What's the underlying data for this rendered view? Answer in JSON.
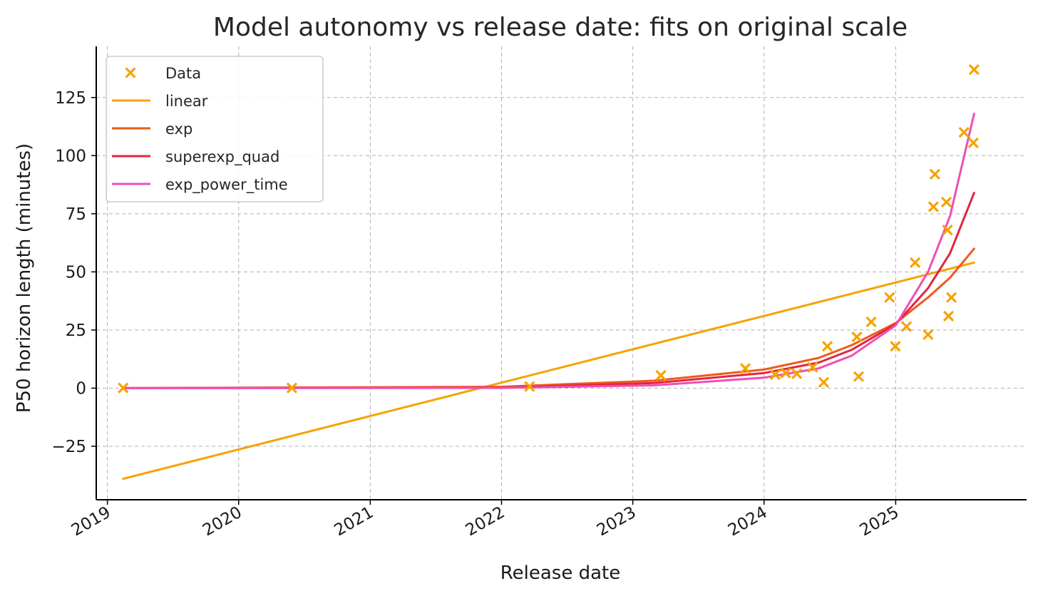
{
  "chart_data": {
    "type": "scatter",
    "title": "Model autonomy vs release date: fits on original scale",
    "xlabel": "Release date",
    "ylabel": "P50 horizon length (minutes)",
    "xlim": [
      "2018-12-01",
      "2025-12-31"
    ],
    "ylim": [
      -48,
      147
    ],
    "x_ticks": [
      {
        "date": "2019-01-01",
        "label": "2019"
      },
      {
        "date": "2020-01-01",
        "label": "2020"
      },
      {
        "date": "2021-01-01",
        "label": "2021"
      },
      {
        "date": "2022-01-01",
        "label": "2022"
      },
      {
        "date": "2023-01-01",
        "label": "2023"
      },
      {
        "date": "2024-01-01",
        "label": "2024"
      },
      {
        "date": "2025-01-01",
        "label": "2025"
      }
    ],
    "y_ticks": [
      {
        "value": -25,
        "label": "−25"
      },
      {
        "value": 0,
        "label": "0"
      },
      {
        "value": 25,
        "label": "25"
      },
      {
        "value": 50,
        "label": "50"
      },
      {
        "value": 75,
        "label": "75"
      },
      {
        "value": 100,
        "label": "100"
      },
      {
        "value": 125,
        "label": "125"
      }
    ],
    "grid": true,
    "legend_position": "top-left",
    "points": {
      "name": "Data",
      "color": "#f5a300",
      "marker": "x",
      "data": [
        {
          "x": "2019-02-14",
          "y": 0.1
        },
        {
          "x": "2020-05-28",
          "y": 0.1
        },
        {
          "x": "2022-03-20",
          "y": 0.7
        },
        {
          "x": "2023-03-20",
          "y": 5.5
        },
        {
          "x": "2023-11-10",
          "y": 8.5
        },
        {
          "x": "2024-02-01",
          "y": 5.8
        },
        {
          "x": "2024-03-01",
          "y": 6.5
        },
        {
          "x": "2024-04-01",
          "y": 6.2
        },
        {
          "x": "2024-05-15",
          "y": 9.0
        },
        {
          "x": "2024-06-15",
          "y": 2.5
        },
        {
          "x": "2024-06-25",
          "y": 18.0
        },
        {
          "x": "2024-09-15",
          "y": 22.0
        },
        {
          "x": "2024-09-20",
          "y": 5.0
        },
        {
          "x": "2024-10-25",
          "y": 28.5
        },
        {
          "x": "2024-12-15",
          "y": 39.0
        },
        {
          "x": "2024-12-31",
          "y": 18.0
        },
        {
          "x": "2025-01-31",
          "y": 26.5
        },
        {
          "x": "2025-02-24",
          "y": 54.0
        },
        {
          "x": "2025-04-01",
          "y": 23.0
        },
        {
          "x": "2025-04-16",
          "y": 78.0
        },
        {
          "x": "2025-04-20",
          "y": 92.0
        },
        {
          "x": "2025-05-22",
          "y": 80.0
        },
        {
          "x": "2025-05-25",
          "y": 68.0
        },
        {
          "x": "2025-05-28",
          "y": 31.0
        },
        {
          "x": "2025-06-05",
          "y": 39.0
        },
        {
          "x": "2025-07-10",
          "y": 110.0
        },
        {
          "x": "2025-08-05",
          "y": 105.5
        },
        {
          "x": "2025-08-07",
          "y": 137.0
        }
      ]
    },
    "series": [
      {
        "name": "linear",
        "color": "#f5a300",
        "x": [
          "2019-02-14",
          "2025-08-07"
        ],
        "y": [
          -39,
          54
        ]
      },
      {
        "name": "exp",
        "color": "#ee5a1e",
        "x": [
          "2019-02-14",
          "2022-01-01",
          "2023-03-01",
          "2024-01-01",
          "2024-06-01",
          "2024-09-01",
          "2025-01-01",
          "2025-04-01",
          "2025-06-01",
          "2025-08-07"
        ],
        "y": [
          0,
          0.6,
          3.2,
          8.0,
          13.0,
          18.5,
          28.0,
          39.0,
          47.5,
          60.0
        ]
      },
      {
        "name": "superexp_quad",
        "color": "#e0263f",
        "x": [
          "2019-02-14",
          "2022-01-01",
          "2023-03-01",
          "2024-01-01",
          "2024-06-01",
          "2024-09-01",
          "2025-01-01",
          "2025-04-01",
          "2025-06-01",
          "2025-08-07"
        ],
        "y": [
          0,
          0.2,
          2.2,
          6.5,
          11.0,
          16.5,
          27.5,
          43.0,
          58.0,
          84.0
        ]
      },
      {
        "name": "exp_power_time",
        "color": "#ee4fb4",
        "x": [
          "2019-02-14",
          "2022-01-01",
          "2023-03-01",
          "2024-01-01",
          "2024-06-01",
          "2024-09-01",
          "2025-01-01",
          "2025-04-01",
          "2025-06-01",
          "2025-08-07"
        ],
        "y": [
          0,
          0.1,
          1.2,
          4.5,
          8.5,
          14.0,
          27.0,
          50.0,
          74.0,
          118.0
        ]
      }
    ]
  }
}
